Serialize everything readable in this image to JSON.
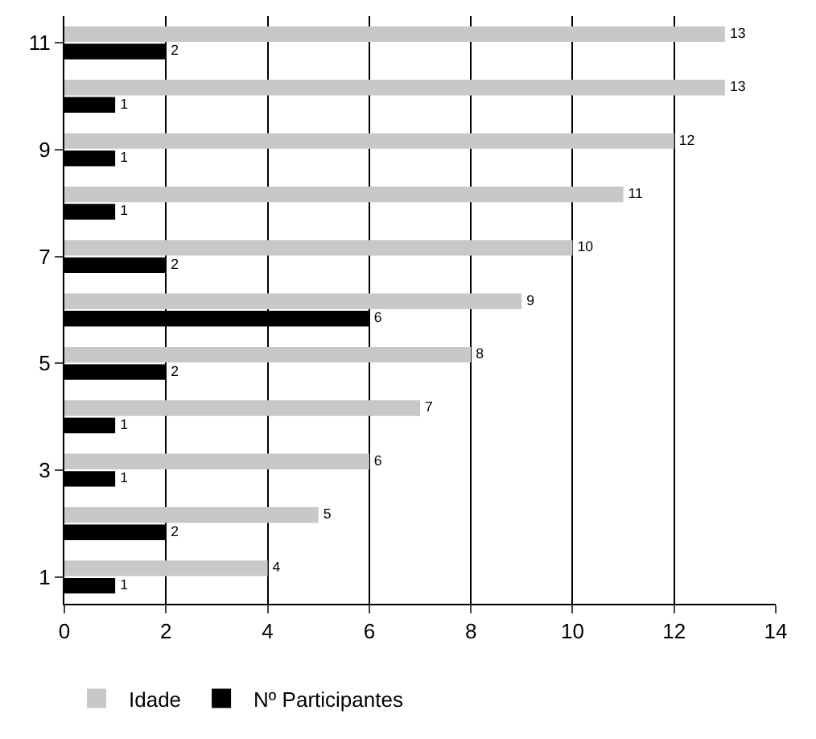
{
  "chart_data": {
    "type": "bar",
    "orientation": "horizontal",
    "categories": [
      "11",
      null,
      "9",
      null,
      "7",
      null,
      "5",
      null,
      "3",
      null,
      "1"
    ],
    "series": [
      {
        "name": "Idade",
        "color": "#c8c8c8",
        "values": [
          13,
          13,
          12,
          11,
          10,
          9,
          8,
          7,
          6,
          5,
          4
        ]
      },
      {
        "name": "Nº Participantes",
        "color": "#000000",
        "values": [
          2,
          1,
          1,
          1,
          2,
          6,
          2,
          1,
          1,
          2,
          1
        ]
      }
    ],
    "xlim": [
      0,
      14
    ],
    "xticks": [
      0,
      2,
      4,
      6,
      8,
      10,
      12,
      14
    ],
    "grid": "x",
    "legend": "bottom",
    "data_labels": true
  }
}
